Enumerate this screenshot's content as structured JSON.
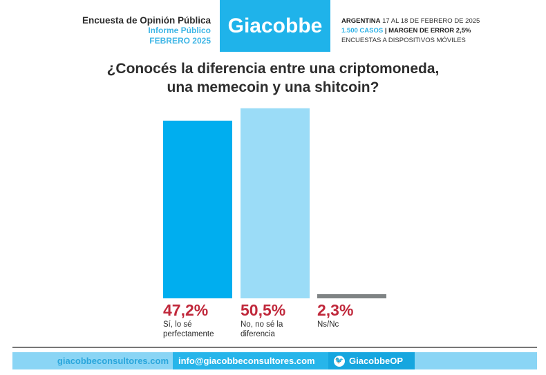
{
  "header": {
    "left_line1": "Encuesta de Opinión Pública",
    "left_line2": "Informe Público",
    "left_line3": "FEBRERO 2025",
    "logo": "Giacobbe",
    "country": "ARGENTINA",
    "dates": "17 AL 18 DE FEBRERO DE 2025",
    "cases": "1.500 CASOS",
    "margin": "| MARGEN DE ERROR 2,5%",
    "method": "ENCUESTAS A DISPOSITIVOS MÓVILES"
  },
  "chart_data": {
    "type": "bar",
    "title_line1": "¿Conocés la diferencia entre una criptomoneda,",
    "title_line2": "una memecoin y una shitcoin?",
    "categories": [
      "Sí, lo sé perfectamente",
      "No, no sé la diferencia",
      "Ns/Nc"
    ],
    "values": [
      47.2,
      50.5,
      2.3
    ],
    "value_labels": [
      "47,2%",
      "50,5%",
      "2,3%"
    ],
    "colors": [
      "#00aeef",
      "#9bdcf7",
      "#7f8384"
    ],
    "ylim": [
      0,
      52
    ]
  },
  "footer": {
    "website": "giacobbeconsultores.com",
    "email": "info@giacobbeconsultores.com",
    "twitter": "GiacobbeOP",
    "twitter_icon": "twitter-bird-icon"
  }
}
